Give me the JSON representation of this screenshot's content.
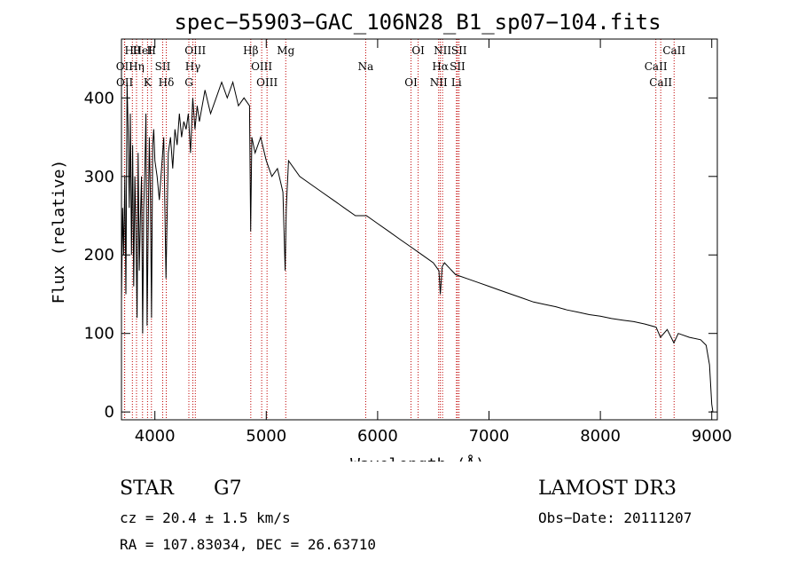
{
  "chart_data": {
    "type": "line",
    "title": "spec−55903−GAC_106N28_B1_sp07−104.fits",
    "xlabel": "Wavelength (Å)",
    "ylabel": "Flux (relative)",
    "xlim": [
      3700,
      9050
    ],
    "ylim": [
      -10,
      475
    ],
    "xticks": [
      4000,
      5000,
      6000,
      7000,
      8000,
      9000
    ],
    "yticks": [
      0,
      100,
      200,
      300,
      400
    ],
    "series": [
      {
        "name": "flux",
        "x": [
          3700,
          3710,
          3720,
          3730,
          3740,
          3750,
          3760,
          3770,
          3780,
          3790,
          3800,
          3810,
          3820,
          3830,
          3840,
          3850,
          3860,
          3870,
          3880,
          3890,
          3900,
          3910,
          3920,
          3930,
          3940,
          3950,
          3960,
          3970,
          3980,
          3990,
          4000,
          4020,
          4040,
          4060,
          4080,
          4100,
          4120,
          4140,
          4160,
          4180,
          4200,
          4220,
          4240,
          4260,
          4280,
          4300,
          4320,
          4340,
          4360,
          4380,
          4400,
          4450,
          4500,
          4550,
          4600,
          4650,
          4700,
          4750,
          4800,
          4850,
          4860,
          4870,
          4900,
          4950,
          5000,
          5050,
          5100,
          5150,
          5170,
          5180,
          5200,
          5300,
          5400,
          5500,
          5600,
          5700,
          5800,
          5900,
          6000,
          6100,
          6200,
          6300,
          6400,
          6500,
          6550,
          6563,
          6580,
          6600,
          6700,
          6800,
          6900,
          7000,
          7100,
          7200,
          7300,
          7400,
          7500,
          7600,
          7700,
          7800,
          7900,
          8000,
          8100,
          8200,
          8300,
          8400,
          8500,
          8540,
          8600,
          8660,
          8700,
          8800,
          8900,
          8950,
          8980,
          9000,
          9010
        ],
        "y": [
          140,
          260,
          200,
          300,
          150,
          420,
          360,
          260,
          380,
          200,
          340,
          160,
          300,
          230,
          120,
          330,
          180,
          250,
          300,
          100,
          260,
          310,
          380,
          110,
          230,
          350,
          270,
          120,
          340,
          360,
          320,
          300,
          270,
          310,
          350,
          170,
          330,
          350,
          310,
          360,
          340,
          380,
          350,
          370,
          360,
          380,
          330,
          400,
          360,
          390,
          370,
          410,
          380,
          400,
          420,
          400,
          420,
          390,
          400,
          390,
          230,
          350,
          330,
          350,
          320,
          300,
          310,
          280,
          180,
          260,
          320,
          300,
          290,
          280,
          270,
          260,
          250,
          250,
          240,
          230,
          220,
          210,
          200,
          190,
          180,
          150,
          185,
          190,
          175,
          170,
          165,
          160,
          155,
          150,
          145,
          140,
          137,
          134,
          130,
          127,
          124,
          122,
          119,
          117,
          115,
          112,
          108,
          95,
          105,
          88,
          100,
          95,
          92,
          85,
          60,
          10,
          0
        ]
      }
    ],
    "spectral_lines": [
      {
        "label": "Hθ",
        "wave": 3798
      },
      {
        "label": "OII",
        "wave": 3727
      },
      {
        "label": "OII",
        "wave": 3729
      },
      {
        "label": "HeI",
        "wave": 3889
      },
      {
        "label": "Hη",
        "wave": 3835
      },
      {
        "label": "K",
        "wave": 3934
      },
      {
        "label": "H",
        "wave": 3969
      },
      {
        "label": "SII",
        "wave": 4070
      },
      {
        "label": "Hδ",
        "wave": 4102
      },
      {
        "label": "OIII",
        "wave": 4363
      },
      {
        "label": "Hγ",
        "wave": 4341
      },
      {
        "label": "G",
        "wave": 4305
      },
      {
        "label": "Hβ",
        "wave": 4861
      },
      {
        "label": "OIII",
        "wave": 4959
      },
      {
        "label": "OIII",
        "wave": 5007
      },
      {
        "label": "Mg",
        "wave": 5175
      },
      {
        "label": "Na",
        "wave": 5893
      },
      {
        "label": "OI",
        "wave": 6300
      },
      {
        "label": "OI",
        "wave": 6364
      },
      {
        "label": "Hα",
        "wave": 6563
      },
      {
        "label": "NII",
        "wave": 6548
      },
      {
        "label": "NII",
        "wave": 6583
      },
      {
        "label": "SII",
        "wave": 6717
      },
      {
        "label": "Li",
        "wave": 6708
      },
      {
        "label": "SII",
        "wave": 6731
      },
      {
        "label": "CaII",
        "wave": 8498
      },
      {
        "label": "CaII",
        "wave": 8542
      },
      {
        "label": "CaII",
        "wave": 8662
      }
    ]
  },
  "info": {
    "class": "STAR",
    "subclass": "G7",
    "cz": "cz = 20.4 ± 1.5 km/s",
    "coords": "RA = 107.83034, DEC =  26.63710",
    "survey": "LAMOST DR3",
    "obs_date": "Obs−Date: 20111207"
  },
  "colors": {
    "line_marker": "#c00000",
    "spectrum": "#000000"
  }
}
